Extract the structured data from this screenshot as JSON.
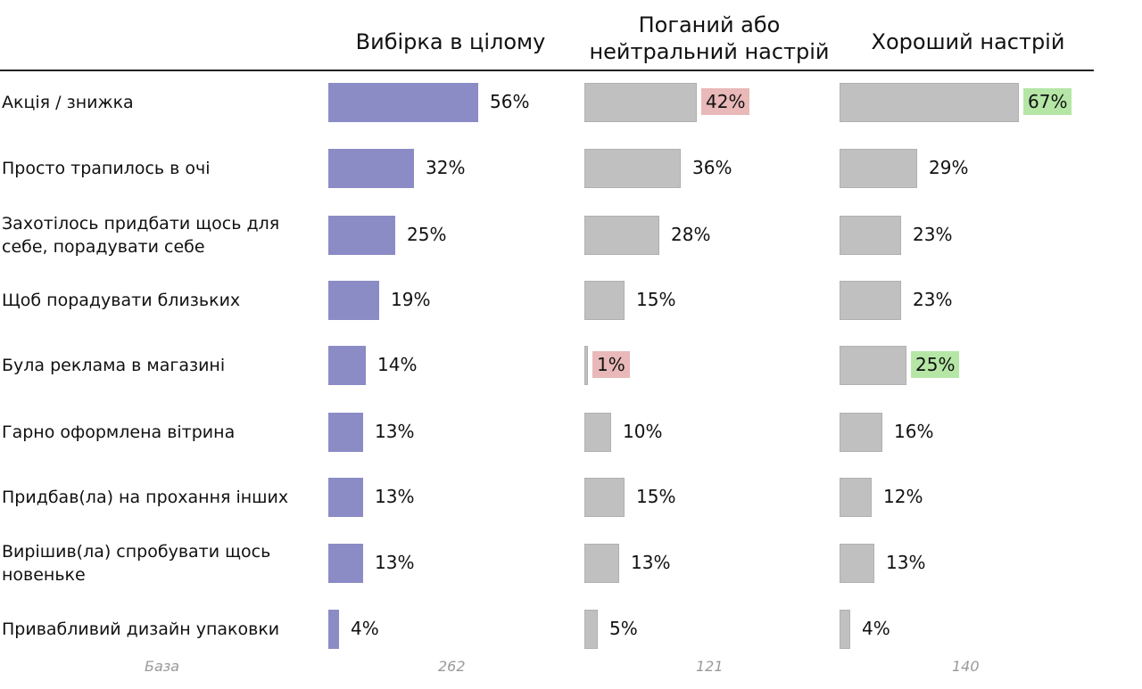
{
  "chart_data": {
    "type": "bar",
    "orientation": "horizontal",
    "categories": [
      "Акція / знижка",
      "Просто трапилось в очі",
      "Захотілось придбати щось для себе, порадувати себе",
      "Щоб порадувати близьких",
      "Була реклама в магазині",
      "Гарно оформлена вітрина",
      "Придбав(ла) на прохання інших",
      "Вирішив(ла) спробувати щось новеньке",
      "Привабливий дизайн упаковки"
    ],
    "series": [
      {
        "name": "Вибірка в цілому",
        "values": [
          56,
          32,
          25,
          19,
          14,
          13,
          13,
          13,
          4
        ],
        "color": "#8b8bc6",
        "base": "262",
        "highlights": [
          null,
          null,
          null,
          null,
          null,
          null,
          null,
          null,
          null
        ]
      },
      {
        "name": "Поганий або нейтральний настрій",
        "values": [
          42,
          36,
          28,
          15,
          1,
          10,
          15,
          13,
          5
        ],
        "color": "#c0c0c0",
        "base": "121",
        "highlights": [
          "low",
          null,
          null,
          null,
          "low",
          null,
          null,
          null,
          null
        ]
      },
      {
        "name": "Хороший настрій",
        "values": [
          67,
          29,
          23,
          23,
          25,
          16,
          12,
          13,
          4
        ],
        "color": "#c0c0c0",
        "base": "140",
        "highlights": [
          "high",
          null,
          null,
          null,
          "high",
          null,
          null,
          null,
          null
        ]
      }
    ],
    "value_suffix": "%",
    "base_label": "База",
    "highlight_colors": {
      "low": "#e9b8b8",
      "high": "#b5e6a6"
    },
    "grid": false
  }
}
